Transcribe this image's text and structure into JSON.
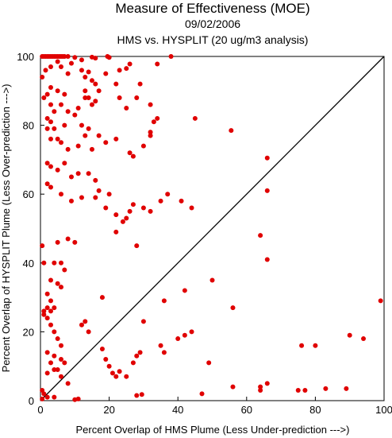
{
  "chart_data": {
    "type": "scatter",
    "title": "Measure of Effectiveness (MOE)",
    "subtitle_date": "09/02/2006",
    "subtitle": "HMS vs. HYSPLIT  (20 ug/m3 analysis)",
    "xlabel": "Percent Overlap of HMS Plume (Less Under-prediction --->)",
    "ylabel": "Percent Overlap of HYSPLIT Plume (Less Over-prediction --->)",
    "xlim": [
      0,
      100
    ],
    "ylim": [
      0,
      100
    ],
    "xticks": [
      "0",
      "20",
      "40",
      "60",
      "80",
      "100"
    ],
    "yticks": [
      "0",
      "20",
      "40",
      "60",
      "80",
      "100"
    ],
    "grid": false,
    "point_color": "#e00000",
    "reference_line": {
      "from": [
        0,
        0
      ],
      "to": [
        100,
        100
      ],
      "color": "#000000"
    },
    "points": [
      [
        0.5,
        100
      ],
      [
        1,
        100
      ],
      [
        1.5,
        100
      ],
      [
        2,
        100
      ],
      [
        2.5,
        100
      ],
      [
        3,
        100
      ],
      [
        3.5,
        100
      ],
      [
        4,
        100
      ],
      [
        4.5,
        100
      ],
      [
        5,
        100
      ],
      [
        5.5,
        100
      ],
      [
        6,
        100
      ],
      [
        6.5,
        100
      ],
      [
        7,
        100
      ],
      [
        8,
        100
      ],
      [
        10,
        99.7
      ],
      [
        12,
        99
      ],
      [
        15,
        99.8
      ],
      [
        16,
        99.5
      ],
      [
        19.5,
        100
      ],
      [
        20,
        99.7
      ],
      [
        26,
        97.8
      ],
      [
        34,
        97.8
      ],
      [
        38,
        100
      ],
      [
        0.5,
        94
      ],
      [
        1.5,
        96
      ],
      [
        3,
        97
      ],
      [
        5,
        98.5
      ],
      [
        6,
        97
      ],
      [
        8,
        95
      ],
      [
        9,
        98
      ],
      [
        12,
        96
      ],
      [
        13,
        94
      ],
      [
        14,
        95.5
      ],
      [
        15,
        93
      ],
      [
        16,
        92
      ],
      [
        17,
        90
      ],
      [
        19,
        95
      ],
      [
        22,
        92
      ],
      [
        23,
        96
      ],
      [
        25,
        96.5
      ],
      [
        29,
        92
      ],
      [
        3,
        91
      ],
      [
        5,
        90
      ],
      [
        7,
        89
      ],
      [
        13,
        90
      ],
      [
        14,
        88
      ],
      [
        15,
        86
      ],
      [
        2,
        89
      ],
      [
        1,
        88
      ],
      [
        3,
        86
      ],
      [
        4,
        84
      ],
      [
        6,
        86
      ],
      [
        8,
        84
      ],
      [
        11,
        85
      ],
      [
        13,
        88
      ],
      [
        16,
        87
      ],
      [
        23,
        88
      ],
      [
        25,
        85
      ],
      [
        28,
        88
      ],
      [
        32,
        86
      ],
      [
        32,
        78
      ],
      [
        33,
        81
      ],
      [
        34,
        82
      ],
      [
        45,
        82
      ],
      [
        55.5,
        78.5
      ],
      [
        2,
        82
      ],
      [
        3,
        81
      ],
      [
        4,
        79
      ],
      [
        2,
        79
      ],
      [
        7,
        80
      ],
      [
        10,
        83
      ],
      [
        12,
        80
      ],
      [
        14,
        79
      ],
      [
        17,
        77
      ],
      [
        3,
        76
      ],
      [
        5,
        76
      ],
      [
        6,
        75
      ],
      [
        8,
        73
      ],
      [
        11,
        74
      ],
      [
        13,
        77
      ],
      [
        15,
        73
      ],
      [
        19,
        75
      ],
      [
        22,
        76
      ],
      [
        26,
        72
      ],
      [
        27,
        71
      ],
      [
        30,
        74
      ],
      [
        32,
        77
      ],
      [
        2,
        69
      ],
      [
        3,
        68
      ],
      [
        5,
        67
      ],
      [
        7,
        69
      ],
      [
        9,
        65
      ],
      [
        11,
        66
      ],
      [
        14,
        66
      ],
      [
        16,
        64
      ],
      [
        17,
        61
      ],
      [
        20,
        60
      ],
      [
        2,
        63
      ],
      [
        3,
        62
      ],
      [
        6,
        60
      ],
      [
        9,
        58
      ],
      [
        12,
        59
      ],
      [
        16,
        59
      ],
      [
        19,
        56
      ],
      [
        22,
        54
      ],
      [
        24,
        52
      ],
      [
        26,
        55
      ],
      [
        27,
        57
      ],
      [
        30,
        56
      ],
      [
        32,
        55
      ],
      [
        35,
        58
      ],
      [
        37,
        60
      ],
      [
        41,
        58
      ],
      [
        44,
        56
      ],
      [
        66,
        70.5
      ],
      [
        66,
        61
      ],
      [
        0.5,
        45
      ],
      [
        5,
        46
      ],
      [
        8,
        47
      ],
      [
        10,
        46
      ],
      [
        1,
        40
      ],
      [
        4,
        40
      ],
      [
        6,
        40
      ],
      [
        7,
        38
      ],
      [
        3,
        35
      ],
      [
        5,
        34
      ],
      [
        6,
        33
      ],
      [
        2,
        31
      ],
      [
        3,
        29
      ],
      [
        4,
        27
      ],
      [
        2,
        27
      ],
      [
        3,
        26
      ],
      [
        1,
        26
      ],
      [
        1,
        25
      ],
      [
        18,
        30
      ],
      [
        22,
        49
      ],
      [
        25,
        53
      ],
      [
        28,
        45
      ],
      [
        36,
        29
      ],
      [
        42,
        32
      ],
      [
        50,
        35
      ],
      [
        56,
        27
      ],
      [
        64,
        48
      ],
      [
        66,
        41
      ],
      [
        2,
        24
      ],
      [
        3,
        22
      ],
      [
        4,
        20
      ],
      [
        5,
        18
      ],
      [
        6,
        16
      ],
      [
        2,
        14
      ],
      [
        4,
        13
      ],
      [
        6,
        12
      ],
      [
        7,
        11
      ],
      [
        3,
        11
      ],
      [
        4,
        9
      ],
      [
        2,
        8
      ],
      [
        5,
        9
      ],
      [
        6,
        7
      ],
      [
        8,
        5
      ],
      [
        0.5,
        3
      ],
      [
        1,
        2
      ],
      [
        2,
        1
      ],
      [
        4,
        1
      ],
      [
        0.5,
        0.5
      ],
      [
        10,
        0.3
      ],
      [
        11,
        0.5
      ],
      [
        12,
        22
      ],
      [
        13,
        23
      ],
      [
        14,
        20
      ],
      [
        18,
        15
      ],
      [
        19,
        12
      ],
      [
        20,
        10
      ],
      [
        21,
        8
      ],
      [
        22,
        7
      ],
      [
        23,
        8.5
      ],
      [
        25,
        7
      ],
      [
        27,
        11
      ],
      [
        28,
        13
      ],
      [
        29,
        14
      ],
      [
        30,
        23
      ],
      [
        35,
        16
      ],
      [
        36,
        14
      ],
      [
        40,
        18
      ],
      [
        42,
        19
      ],
      [
        44,
        20
      ],
      [
        49,
        11
      ],
      [
        28,
        1.5
      ],
      [
        29.5,
        1.8
      ],
      [
        47,
        2
      ],
      [
        56,
        4
      ],
      [
        64,
        4
      ],
      [
        64,
        3
      ],
      [
        66,
        5
      ],
      [
        75,
        3
      ],
      [
        76,
        16
      ],
      [
        77,
        3
      ],
      [
        80,
        16
      ],
      [
        83,
        3.5
      ],
      [
        89,
        3.5
      ],
      [
        90,
        19
      ],
      [
        94,
        18
      ],
      [
        99,
        29
      ]
    ]
  }
}
